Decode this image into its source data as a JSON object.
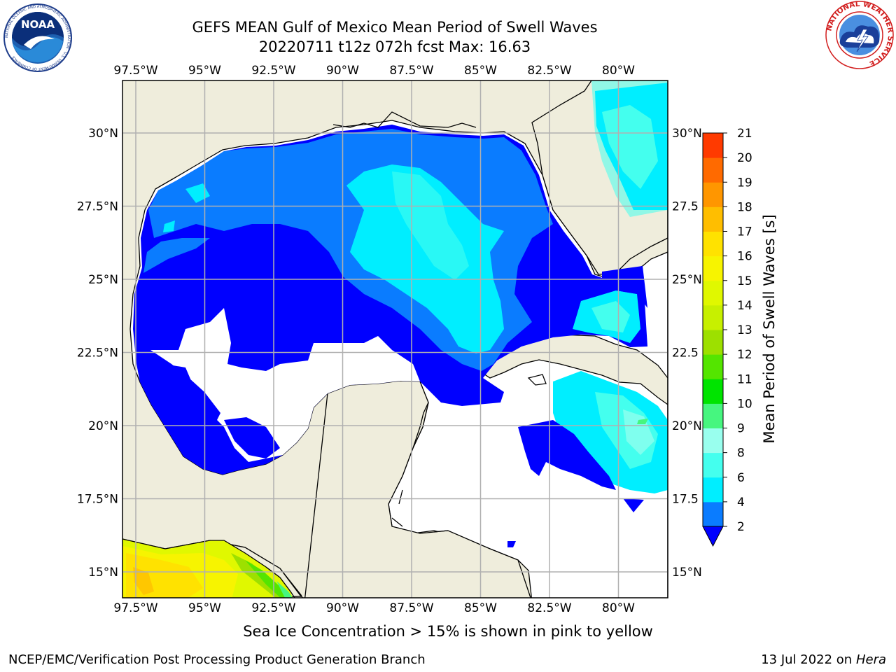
{
  "titles": {
    "line1": "GEFS MEAN Gulf of Mexico Mean Period of Swell Waves",
    "line2": "20220711 t12z 072h fcst   Max: 16.63"
  },
  "map": {
    "lon_labels": [
      "97.5°W",
      "95°W",
      "92.5°W",
      "90°W",
      "87.5°W",
      "85°W",
      "82.5°W",
      "80°W"
    ],
    "lat_labels": [
      "30°N",
      "27.5°N",
      "25°N",
      "22.5°N",
      "20°N",
      "17.5°N",
      "15°N"
    ],
    "lat_labels_right": [
      "30°N",
      "27.5",
      "25°N",
      "22.5",
      "20°N",
      "17.5",
      "15°N"
    ],
    "land_color": "#efeddc",
    "grid_color": "#b0b0b0"
  },
  "colorbar": {
    "label": "Mean Period of Swell Waves [s]",
    "ticks": [
      "2",
      "4",
      "6",
      "8",
      "9",
      "10",
      "11",
      "12",
      "13",
      "14",
      "15",
      "16",
      "17",
      "18",
      "19",
      "20",
      "21"
    ],
    "colors": [
      "#0a7cff",
      "#00eeff",
      "#44ffee",
      "#99ffee",
      "#46f67f",
      "#00e400",
      "#54e500",
      "#9de000",
      "#c7f000",
      "#e0f800",
      "#f7f400",
      "#ffe200",
      "#ffbe00",
      "#ff9600",
      "#ff6a00",
      "#ff3a00",
      "#ff0000"
    ],
    "under_color": "#0000ff"
  },
  "logos": {
    "noaa_text": "NOAA",
    "noaa_ring": "NATIONAL OCEANIC AND ATMOSPHERIC ADMINISTRATION · U.S. DEPARTMENT OF COMMERCE",
    "nws_ring": "NATIONAL WEATHER SERVICE"
  },
  "note": "Sea Ice Concentration > 15% is shown in pink to yellow",
  "footer": {
    "left": "NCEP/EMC/Verification Post Processing Product Generation Branch",
    "right_prefix": "13 Jul 2022 on ",
    "right_host": "Hera"
  }
}
